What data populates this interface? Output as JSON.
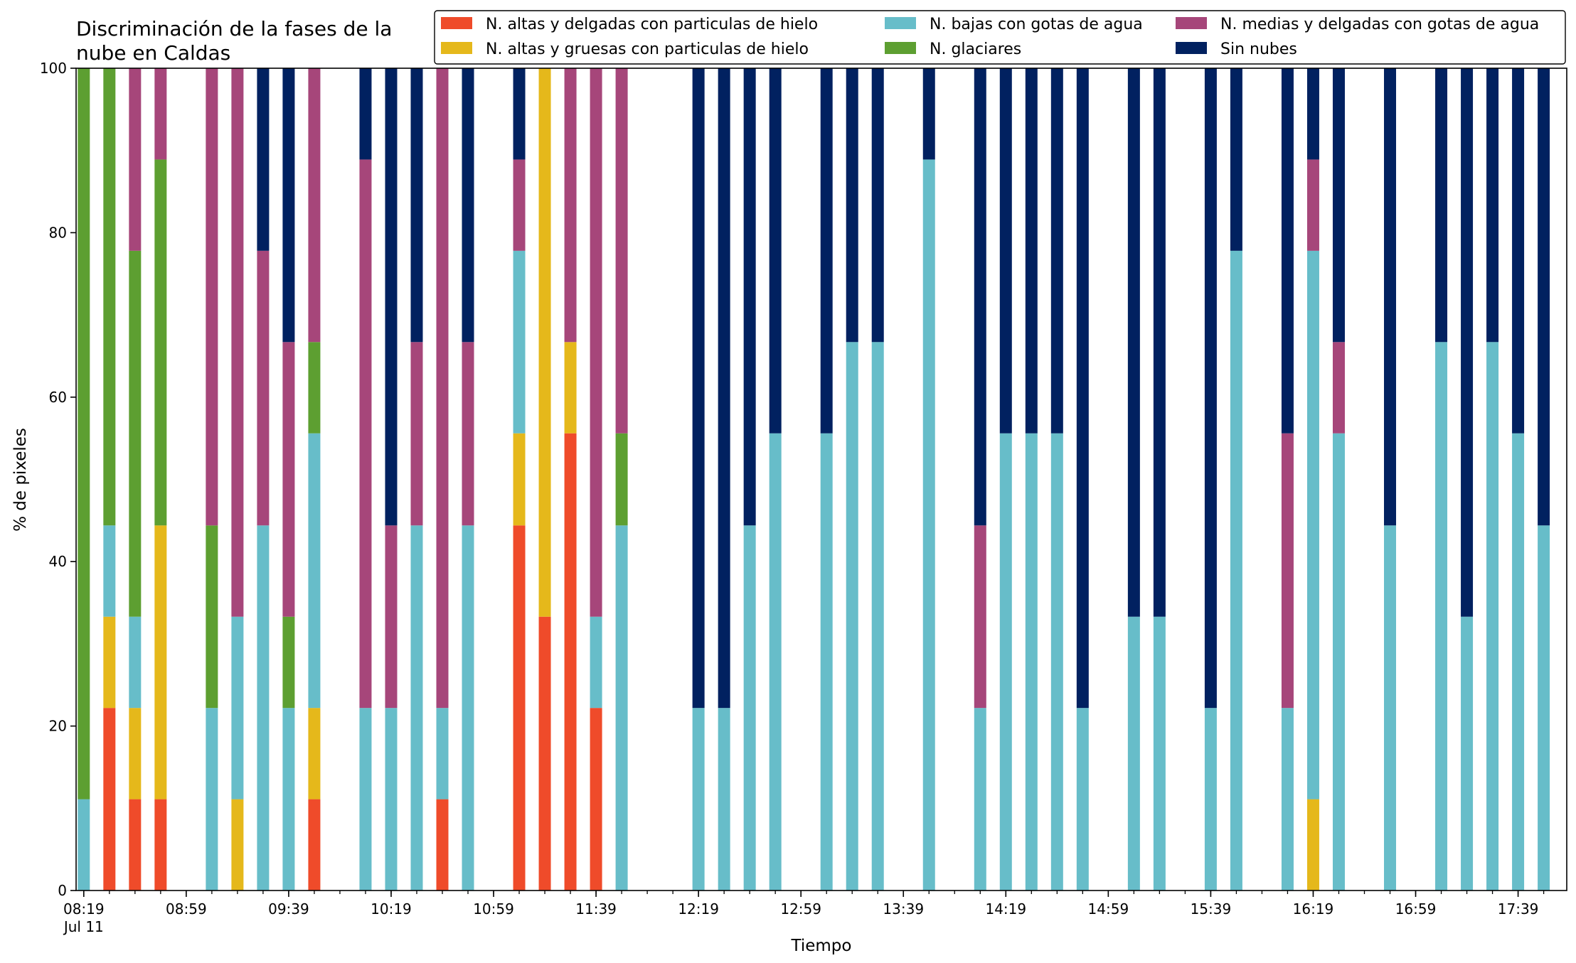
{
  "chart_data": {
    "type": "bar",
    "stacked": true,
    "title": "Discriminación de la fases de la\nnube en Caldas",
    "xlabel": "Tiempo",
    "ylabel": "% de pixeles",
    "ylim": [
      0,
      100
    ],
    "yticks": [
      0,
      20,
      40,
      60,
      80,
      100
    ],
    "xlim_minutes": [
      496,
      1078
    ],
    "minor_tick_step_minutes": 10,
    "xtick_labels": [
      {
        "minute": 499,
        "label": "08:19",
        "sub": "Jul 11"
      },
      {
        "minute": 539,
        "label": "08:59"
      },
      {
        "minute": 579,
        "label": "09:39"
      },
      {
        "minute": 619,
        "label": "10:19"
      },
      {
        "minute": 659,
        "label": "10:59"
      },
      {
        "minute": 699,
        "label": "11:39"
      },
      {
        "minute": 739,
        "label": "12:19"
      },
      {
        "minute": 779,
        "label": "12:59"
      },
      {
        "minute": 819,
        "label": "13:39"
      },
      {
        "minute": 859,
        "label": "14:19"
      },
      {
        "minute": 899,
        "label": "14:59"
      },
      {
        "minute": 939,
        "label": "15:39"
      },
      {
        "minute": 979,
        "label": "16:19"
      },
      {
        "minute": 1019,
        "label": "16:59"
      },
      {
        "minute": 1059,
        "label": "17:39"
      }
    ],
    "legend_position": "top-right",
    "legend": [
      {
        "key": "r",
        "name": "N. altas y delgadas con particulas de hielo",
        "color": "#EF4B2A"
      },
      {
        "key": "y",
        "name": "N. altas y gruesas con particulas de hielo",
        "color": "#E5B81B"
      },
      {
        "key": "c",
        "name": "N. bajas con gotas de agua",
        "color": "#67BDC9"
      },
      {
        "key": "g",
        "name": "N. glaciares",
        "color": "#5D9F31"
      },
      {
        "key": "p",
        "name": "N. medias y delgadas con gotas de agua",
        "color": "#A6467A"
      },
      {
        "key": "n",
        "name": "Sin nubes",
        "color": "#012160"
      }
    ],
    "stack_order": [
      "r",
      "y",
      "c",
      "g",
      "p",
      "n"
    ],
    "bars": [
      {
        "minute": 499,
        "r": 0,
        "y": 0,
        "c": 11.1,
        "g": 88.9,
        "p": 0,
        "n": 0
      },
      {
        "minute": 509,
        "r": 22.2,
        "y": 11.1,
        "c": 11.1,
        "g": 55.6,
        "p": 0,
        "n": 0
      },
      {
        "minute": 519,
        "r": 11.1,
        "y": 11.1,
        "c": 11.1,
        "g": 44.5,
        "p": 22.2,
        "n": 0
      },
      {
        "minute": 529,
        "r": 11.1,
        "y": 33.3,
        "c": 0,
        "g": 44.5,
        "p": 11.1,
        "n": 0
      },
      {
        "minute": 549,
        "r": 0,
        "y": 0,
        "c": 22.2,
        "g": 22.2,
        "p": 55.6,
        "n": 0
      },
      {
        "minute": 559,
        "r": 0,
        "y": 11.1,
        "c": 22.2,
        "g": 0,
        "p": 66.7,
        "n": 0
      },
      {
        "minute": 569,
        "r": 0,
        "y": 0,
        "c": 44.4,
        "g": 0,
        "p": 33.4,
        "n": 22.2
      },
      {
        "minute": 579,
        "r": 0,
        "y": 0,
        "c": 22.2,
        "g": 11.1,
        "p": 33.4,
        "n": 33.3
      },
      {
        "minute": 589,
        "r": 11.1,
        "y": 11.1,
        "c": 33.4,
        "g": 11.1,
        "p": 33.3,
        "n": 0
      },
      {
        "minute": 609,
        "r": 0,
        "y": 0,
        "c": 22.2,
        "g": 0,
        "p": 66.7,
        "n": 11.1
      },
      {
        "minute": 619,
        "r": 0,
        "y": 0,
        "c": 22.2,
        "g": 0,
        "p": 22.2,
        "n": 55.6
      },
      {
        "minute": 629,
        "r": 0,
        "y": 0,
        "c": 44.4,
        "g": 0,
        "p": 22.3,
        "n": 33.3
      },
      {
        "minute": 639,
        "r": 11.1,
        "y": 0,
        "c": 11.1,
        "g": 0,
        "p": 77.8,
        "n": 0
      },
      {
        "minute": 649,
        "r": 0,
        "y": 0,
        "c": 44.4,
        "g": 0,
        "p": 22.3,
        "n": 33.3
      },
      {
        "minute": 669,
        "r": 44.4,
        "y": 11.2,
        "c": 22.2,
        "g": 0,
        "p": 11.1,
        "n": 11.1
      },
      {
        "minute": 679,
        "r": 33.3,
        "y": 66.7,
        "c": 0,
        "g": 0,
        "p": 0,
        "n": 0
      },
      {
        "minute": 689,
        "r": 55.6,
        "y": 11.1,
        "c": 0,
        "g": 0,
        "p": 33.3,
        "n": 0
      },
      {
        "minute": 699,
        "r": 22.2,
        "y": 0,
        "c": 11.1,
        "g": 0,
        "p": 66.7,
        "n": 0
      },
      {
        "minute": 709,
        "r": 0,
        "y": 0,
        "c": 44.4,
        "g": 11.2,
        "p": 44.4,
        "n": 0
      },
      {
        "minute": 739,
        "r": 0,
        "y": 0,
        "c": 22.2,
        "g": 0,
        "p": 0,
        "n": 77.8
      },
      {
        "minute": 749,
        "r": 0,
        "y": 0,
        "c": 22.2,
        "g": 0,
        "p": 0,
        "n": 77.8
      },
      {
        "minute": 759,
        "r": 0,
        "y": 0,
        "c": 44.4,
        "g": 0,
        "p": 0,
        "n": 55.6
      },
      {
        "minute": 769,
        "r": 0,
        "y": 0,
        "c": 55.6,
        "g": 0,
        "p": 0,
        "n": 44.4
      },
      {
        "minute": 789,
        "r": 0,
        "y": 0,
        "c": 55.6,
        "g": 0,
        "p": 0,
        "n": 44.4
      },
      {
        "minute": 799,
        "r": 0,
        "y": 0,
        "c": 66.7,
        "g": 0,
        "p": 0,
        "n": 33.3
      },
      {
        "minute": 809,
        "r": 0,
        "y": 0,
        "c": 66.7,
        "g": 0,
        "p": 0,
        "n": 33.3
      },
      {
        "minute": 829,
        "r": 0,
        "y": 0,
        "c": 88.9,
        "g": 0,
        "p": 0,
        "n": 11.1
      },
      {
        "minute": 849,
        "r": 0,
        "y": 0,
        "c": 22.2,
        "g": 0,
        "p": 22.2,
        "n": 55.6
      },
      {
        "minute": 859,
        "r": 0,
        "y": 0,
        "c": 55.6,
        "g": 0,
        "p": 0,
        "n": 44.4
      },
      {
        "minute": 869,
        "r": 0,
        "y": 0,
        "c": 55.6,
        "g": 0,
        "p": 0,
        "n": 44.4
      },
      {
        "minute": 879,
        "r": 0,
        "y": 0,
        "c": 55.6,
        "g": 0,
        "p": 0,
        "n": 44.4
      },
      {
        "minute": 889,
        "r": 0,
        "y": 0,
        "c": 22.2,
        "g": 0,
        "p": 0,
        "n": 77.8
      },
      {
        "minute": 909,
        "r": 0,
        "y": 0,
        "c": 33.3,
        "g": 0,
        "p": 0,
        "n": 66.7
      },
      {
        "minute": 919,
        "r": 0,
        "y": 0,
        "c": 33.3,
        "g": 0,
        "p": 0,
        "n": 66.7
      },
      {
        "minute": 939,
        "r": 0,
        "y": 0,
        "c": 22.2,
        "g": 0,
        "p": 0,
        "n": 77.8
      },
      {
        "minute": 949,
        "r": 0,
        "y": 0,
        "c": 77.8,
        "g": 0,
        "p": 0,
        "n": 22.2
      },
      {
        "minute": 969,
        "r": 0,
        "y": 0,
        "c": 22.2,
        "g": 0,
        "p": 33.4,
        "n": 44.4
      },
      {
        "minute": 979,
        "r": 0,
        "y": 11.1,
        "c": 66.7,
        "g": 0,
        "p": 11.1,
        "n": 11.1
      },
      {
        "minute": 989,
        "r": 0,
        "y": 0,
        "c": 55.6,
        "g": 0,
        "p": 11.1,
        "n": 33.3
      },
      {
        "minute": 1009,
        "r": 0,
        "y": 0,
        "c": 44.4,
        "g": 0,
        "p": 0,
        "n": 55.6
      },
      {
        "minute": 1029,
        "r": 0,
        "y": 0,
        "c": 66.7,
        "g": 0,
        "p": 0,
        "n": 33.3
      },
      {
        "minute": 1039,
        "r": 0,
        "y": 0,
        "c": 33.3,
        "g": 0,
        "p": 0,
        "n": 66.7
      },
      {
        "minute": 1049,
        "r": 0,
        "y": 0,
        "c": 66.7,
        "g": 0,
        "p": 0,
        "n": 33.3
      },
      {
        "minute": 1059,
        "r": 0,
        "y": 0,
        "c": 55.6,
        "g": 0,
        "p": 0,
        "n": 44.4
      },
      {
        "minute": 1069,
        "r": 0,
        "y": 0,
        "c": 44.4,
        "g": 0,
        "p": 0,
        "n": 55.6
      }
    ]
  }
}
